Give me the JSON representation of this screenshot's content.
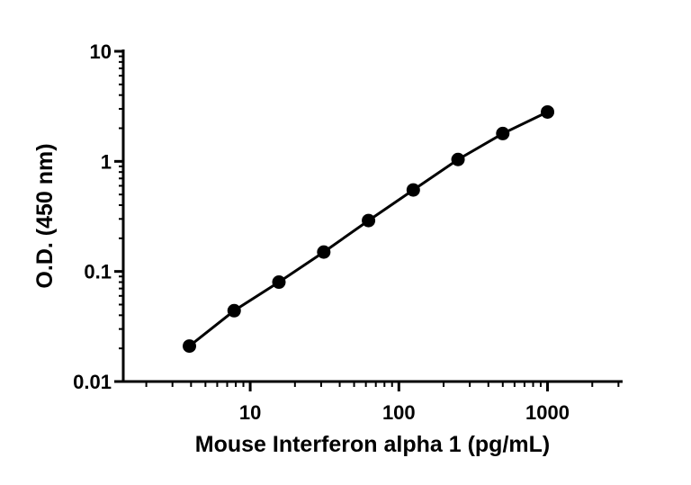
{
  "chart_data": {
    "type": "scatter",
    "title": "",
    "xlabel": "Mouse Interferon alpha 1 (pg/mL)",
    "ylabel": "O.D. (450 nm)",
    "xscale": "log",
    "yscale": "log",
    "xlim": [
      1.4,
      3200
    ],
    "ylim": [
      0.01,
      10
    ],
    "x_ticks": [
      10,
      100,
      1000
    ],
    "x_tick_labels": [
      "10",
      "100",
      "1000"
    ],
    "y_ticks": [
      0.01,
      0.1,
      1,
      10
    ],
    "y_tick_labels": [
      "0.01",
      "0.1",
      "1",
      "10"
    ],
    "grid": false,
    "series": [
      {
        "x": [
          3.9,
          7.8,
          15.6,
          31.25,
          62.5,
          125,
          250,
          500,
          1000
        ],
        "y": [
          0.021,
          0.044,
          0.08,
          0.15,
          0.29,
          0.55,
          1.04,
          1.79,
          2.81
        ],
        "color": "#000000",
        "marker": "circle",
        "fit_line": true
      }
    ]
  }
}
